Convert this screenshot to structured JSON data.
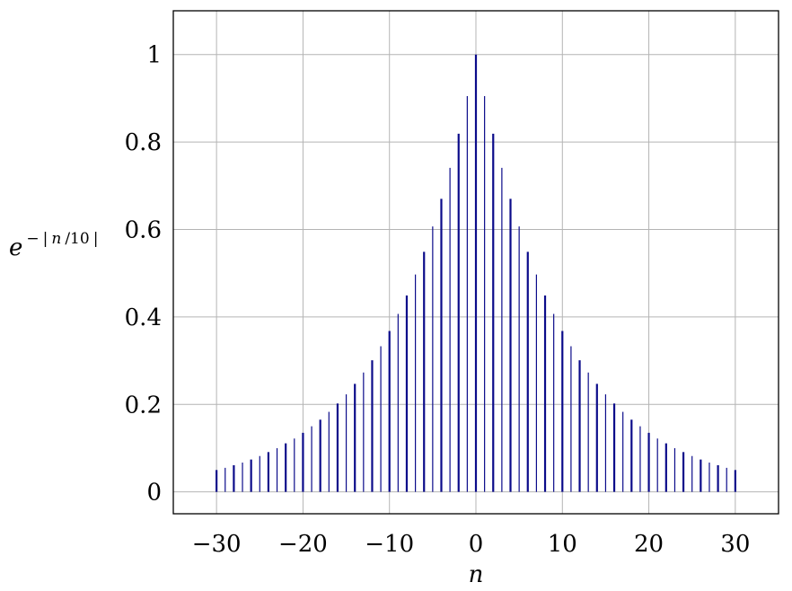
{
  "chart_data": {
    "type": "bar",
    "subtype": "stem",
    "title": "",
    "xlabel": "n",
    "ylabel": {
      "base": "e",
      "exponent_minus": "−",
      "exponent_bar_open": "|",
      "exponent_n": "n",
      "exponent_div": "/10",
      "exponent_bar_close": "|"
    },
    "xlim": [
      -35,
      35
    ],
    "ylim": [
      -0.05,
      1.1
    ],
    "grid": true,
    "x_ticks": [
      -30,
      -20,
      -10,
      0,
      10,
      20,
      30
    ],
    "x_tick_labels": [
      "−30",
      "−20",
      "−10",
      "0",
      "10",
      "20",
      "30"
    ],
    "y_ticks": [
      0,
      0.2,
      0.4,
      0.6,
      0.8,
      1
    ],
    "y_tick_labels": [
      "0",
      "0.2",
      "0.4",
      "0.6",
      "0.8",
      "1"
    ],
    "color": "#0b0b8a",
    "x": [
      -30,
      -29,
      -28,
      -27,
      -26,
      -25,
      -24,
      -23,
      -22,
      -21,
      -20,
      -19,
      -18,
      -17,
      -16,
      -15,
      -14,
      -13,
      -12,
      -11,
      -10,
      -9,
      -8,
      -7,
      -6,
      -5,
      -4,
      -3,
      -2,
      -1,
      0,
      1,
      2,
      3,
      4,
      5,
      6,
      7,
      8,
      9,
      10,
      11,
      12,
      13,
      14,
      15,
      16,
      17,
      18,
      19,
      20,
      21,
      22,
      23,
      24,
      25,
      26,
      27,
      28,
      29,
      30
    ],
    "values": [
      0.05,
      0.055,
      0.061,
      0.067,
      0.074,
      0.082,
      0.091,
      0.1,
      0.111,
      0.122,
      0.135,
      0.15,
      0.165,
      0.183,
      0.202,
      0.223,
      0.247,
      0.273,
      0.301,
      0.333,
      0.368,
      0.407,
      0.449,
      0.497,
      0.549,
      0.607,
      0.67,
      0.741,
      0.819,
      0.905,
      1.0,
      0.905,
      0.819,
      0.741,
      0.67,
      0.607,
      0.549,
      0.497,
      0.449,
      0.407,
      0.368,
      0.333,
      0.301,
      0.273,
      0.247,
      0.223,
      0.202,
      0.183,
      0.165,
      0.15,
      0.135,
      0.122,
      0.111,
      0.1,
      0.091,
      0.082,
      0.074,
      0.067,
      0.061,
      0.055,
      0.05
    ]
  }
}
